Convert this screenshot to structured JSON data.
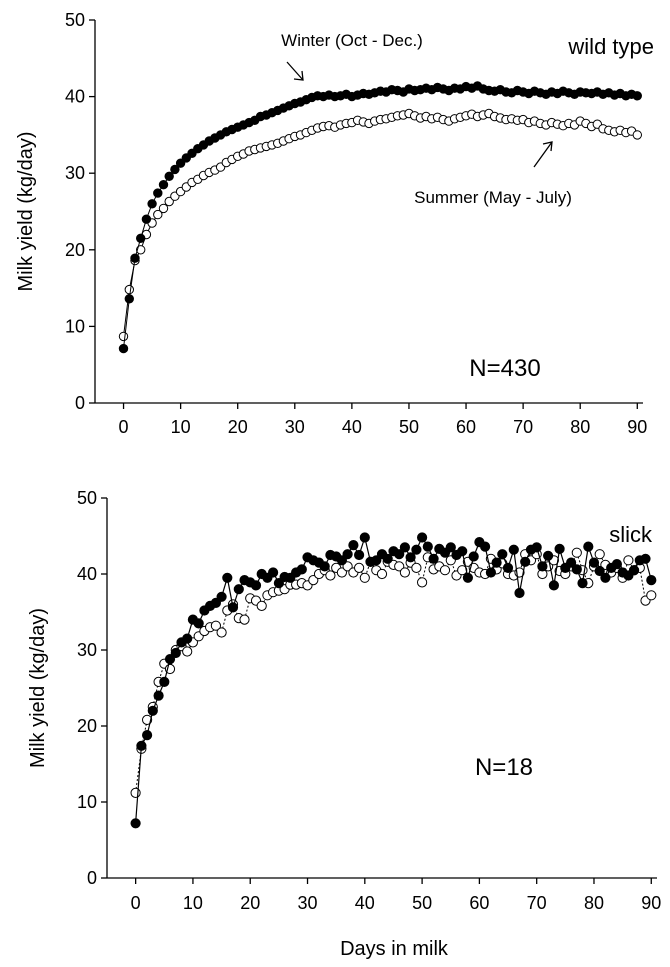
{
  "chart_data": [
    {
      "type": "scatter",
      "panel_label": "wild type",
      "n_label": "N=430",
      "ylabel": "Milk yield (kg/day)",
      "xlabel": "",
      "xlim": [
        -5,
        91
      ],
      "ylim": [
        0,
        50
      ],
      "xticks": [
        "0",
        "10",
        "20",
        "30",
        "40",
        "50",
        "60",
        "70",
        "80",
        "90"
      ],
      "yticks": [
        "0",
        "10",
        "20",
        "30",
        "40",
        "50"
      ],
      "annotations": [
        {
          "id": "winter",
          "text": "Winter (Oct - Dec.)"
        },
        {
          "id": "summer",
          "text": "Summer (May - July)"
        }
      ],
      "series": [
        {
          "marker": "filled",
          "color": "#000000",
          "x": [
            0,
            1,
            2,
            3,
            4,
            5,
            6,
            7,
            8,
            9,
            10,
            11,
            12,
            13,
            14,
            15,
            16,
            17,
            18,
            19,
            20,
            21,
            22,
            23,
            24,
            25,
            26,
            27,
            28,
            29,
            30,
            31,
            32,
            33,
            34,
            35,
            36,
            37,
            38,
            39,
            40,
            41,
            42,
            43,
            44,
            45,
            46,
            47,
            48,
            49,
            50,
            51,
            52,
            53,
            54,
            55,
            56,
            57,
            58,
            59,
            60,
            61,
            62,
            63,
            64,
            65,
            66,
            67,
            68,
            69,
            70,
            71,
            72,
            73,
            74,
            75,
            76,
            77,
            78,
            79,
            80,
            81,
            82,
            83,
            84,
            85,
            86,
            87,
            88,
            89,
            90
          ],
          "values": [
            7.1,
            13.6,
            18.9,
            21.5,
            24.0,
            26.0,
            27.4,
            28.5,
            29.6,
            30.5,
            31.3,
            32.0,
            32.6,
            33.2,
            33.7,
            34.2,
            34.6,
            35.0,
            35.4,
            35.7,
            36.0,
            36.3,
            36.6,
            36.9,
            37.4,
            37.6,
            37.9,
            38.2,
            38.5,
            38.8,
            39.1,
            39.3,
            39.6,
            39.9,
            40.1,
            40.0,
            40.2,
            40.0,
            40.1,
            40.3,
            40.0,
            40.2,
            40.4,
            40.3,
            40.5,
            40.7,
            40.6,
            40.9,
            40.8,
            40.6,
            41.0,
            40.8,
            40.9,
            41.1,
            40.9,
            41.2,
            41.0,
            40.8,
            41.1,
            41.0,
            41.3,
            41.1,
            41.4,
            41.0,
            40.8,
            40.7,
            40.9,
            40.6,
            40.5,
            40.8,
            40.6,
            40.4,
            40.7,
            40.5,
            40.3,
            40.6,
            40.4,
            40.7,
            40.5,
            40.3,
            40.6,
            40.5,
            40.4,
            40.6,
            40.3,
            40.5,
            40.2,
            40.4,
            40.1,
            40.3,
            40.1
          ]
        },
        {
          "marker": "open",
          "color": "#000000",
          "x": [
            0,
            1,
            2,
            3,
            4,
            5,
            6,
            7,
            8,
            9,
            10,
            11,
            12,
            13,
            14,
            15,
            16,
            17,
            18,
            19,
            20,
            21,
            22,
            23,
            24,
            25,
            26,
            27,
            28,
            29,
            30,
            31,
            32,
            33,
            34,
            35,
            36,
            37,
            38,
            39,
            40,
            41,
            42,
            43,
            44,
            45,
            46,
            47,
            48,
            49,
            50,
            51,
            52,
            53,
            54,
            55,
            56,
            57,
            58,
            59,
            60,
            61,
            62,
            63,
            64,
            65,
            66,
            67,
            68,
            69,
            70,
            71,
            72,
            73,
            74,
            75,
            76,
            77,
            78,
            79,
            80,
            81,
            82,
            83,
            84,
            85,
            86,
            87,
            88,
            89,
            90
          ],
          "values": [
            8.7,
            14.8,
            18.6,
            20.0,
            22.0,
            23.5,
            24.6,
            25.4,
            26.3,
            27.0,
            27.6,
            28.2,
            28.8,
            29.2,
            29.7,
            30.1,
            30.4,
            30.8,
            31.4,
            31.8,
            32.2,
            32.5,
            32.9,
            33.1,
            33.3,
            33.5,
            33.7,
            33.9,
            34.2,
            34.5,
            34.8,
            35.0,
            35.3,
            35.6,
            35.9,
            36.1,
            36.2,
            36.0,
            36.3,
            36.5,
            36.6,
            36.9,
            36.7,
            36.5,
            36.8,
            37.0,
            37.1,
            37.3,
            37.5,
            37.6,
            37.8,
            37.5,
            37.2,
            37.4,
            37.1,
            37.3,
            37.0,
            36.8,
            37.1,
            37.3,
            37.5,
            37.7,
            37.4,
            37.6,
            37.8,
            37.4,
            37.2,
            37.0,
            37.1,
            36.9,
            37.0,
            36.6,
            36.8,
            36.5,
            36.3,
            36.6,
            36.4,
            36.2,
            36.5,
            36.3,
            36.8,
            36.5,
            36.1,
            36.4,
            35.8,
            35.6,
            35.4,
            35.6,
            35.3,
            35.5,
            35.0
          ]
        }
      ]
    },
    {
      "type": "scatter",
      "panel_label": "slick",
      "n_label": "N=18",
      "ylabel": "Milk yield (kg/day)",
      "xlabel": "Days in milk",
      "xlim": [
        -5,
        91
      ],
      "ylim": [
        0,
        50
      ],
      "xticks": [
        "0",
        "10",
        "20",
        "30",
        "40",
        "50",
        "60",
        "70",
        "80",
        "90"
      ],
      "yticks": [
        "0",
        "10",
        "20",
        "30",
        "40",
        "50"
      ],
      "series": [
        {
          "marker": "filled",
          "line": "solid",
          "color": "#000000",
          "x": [
            0,
            1,
            2,
            3,
            4,
            5,
            6,
            7,
            8,
            9,
            10,
            11,
            12,
            13,
            14,
            15,
            16,
            17,
            18,
            19,
            20,
            21,
            22,
            23,
            24,
            25,
            26,
            27,
            28,
            29,
            30,
            31,
            32,
            33,
            34,
            35,
            36,
            37,
            38,
            39,
            40,
            41,
            42,
            43,
            44,
            45,
            46,
            47,
            48,
            49,
            50,
            51,
            52,
            53,
            54,
            55,
            56,
            57,
            58,
            59,
            60,
            61,
            62,
            63,
            64,
            65,
            66,
            67,
            68,
            69,
            70,
            71,
            72,
            73,
            74,
            75,
            76,
            77,
            78,
            79,
            80,
            81,
            82,
            83,
            84,
            85,
            86,
            87,
            88,
            89,
            90
          ],
          "values": [
            7.2,
            17.4,
            18.8,
            22.0,
            24.0,
            25.8,
            28.8,
            29.6,
            31.0,
            31.5,
            34.0,
            33.5,
            35.2,
            35.8,
            36.2,
            37.0,
            39.5,
            35.6,
            38.0,
            39.2,
            38.9,
            38.5,
            40.0,
            39.5,
            40.2,
            38.8,
            39.6,
            39.5,
            40.2,
            40.6,
            42.2,
            41.8,
            41.5,
            41.0,
            42.5,
            42.3,
            41.8,
            42.6,
            43.8,
            42.5,
            44.8,
            41.6,
            41.8,
            42.6,
            42.0,
            43.0,
            42.6,
            43.5,
            42.2,
            43.2,
            44.8,
            43.6,
            42.0,
            43.3,
            42.8,
            43.5,
            42.5,
            43.0,
            39.5,
            42.3,
            44.2,
            43.6,
            40.2,
            41.5,
            42.6,
            40.8,
            43.2,
            37.5,
            41.6,
            43.2,
            43.5,
            41.0,
            42.4,
            38.5,
            43.3,
            40.8,
            41.5,
            40.6,
            38.8,
            43.6,
            41.5,
            40.4,
            39.5,
            40.8,
            41.3,
            40.2,
            39.8,
            40.5,
            41.8,
            42.0,
            39.2
          ]
        },
        {
          "marker": "open",
          "line": "dotted",
          "color": "#000000",
          "x": [
            0,
            1,
            2,
            3,
            4,
            5,
            6,
            7,
            8,
            9,
            10,
            11,
            12,
            13,
            14,
            15,
            16,
            17,
            18,
            19,
            20,
            21,
            22,
            23,
            24,
            25,
            26,
            27,
            28,
            29,
            30,
            31,
            32,
            33,
            34,
            35,
            36,
            37,
            38,
            39,
            40,
            41,
            42,
            43,
            44,
            45,
            46,
            47,
            48,
            49,
            50,
            51,
            52,
            53,
            54,
            55,
            56,
            57,
            58,
            59,
            60,
            61,
            62,
            63,
            64,
            65,
            66,
            67,
            68,
            69,
            70,
            71,
            72,
            73,
            74,
            75,
            76,
            77,
            78,
            79,
            80,
            81,
            82,
            83,
            84,
            85,
            86,
            87,
            88,
            89,
            90
          ],
          "values": [
            11.2,
            17.0,
            20.8,
            22.5,
            25.8,
            28.2,
            27.5,
            30.0,
            30.5,
            29.8,
            31.0,
            31.8,
            32.5,
            33.0,
            33.2,
            32.3,
            35.2,
            36.0,
            34.2,
            34.0,
            36.8,
            36.5,
            35.8,
            37.2,
            37.6,
            37.8,
            38.0,
            38.6,
            38.6,
            38.8,
            38.5,
            39.2,
            40.0,
            40.5,
            39.8,
            40.8,
            40.2,
            41.0,
            40.2,
            40.8,
            39.5,
            41.6,
            40.5,
            40.0,
            41.6,
            41.2,
            41.0,
            40.2,
            41.5,
            40.8,
            38.9,
            42.2,
            40.6,
            41.0,
            40.5,
            41.8,
            39.8,
            40.5,
            41.6,
            40.8,
            40.2,
            40.0,
            42.0,
            40.6,
            41.4,
            40.0,
            39.8,
            40.2,
            42.6,
            41.8,
            42.6,
            40.0,
            41.0,
            41.8,
            40.4,
            40.0,
            41.0,
            42.8,
            40.5,
            38.8,
            41.0,
            42.6,
            41.2,
            40.2,
            40.8,
            39.5,
            41.8,
            40.5,
            40.8,
            36.5,
            37.2
          ]
        }
      ]
    }
  ]
}
